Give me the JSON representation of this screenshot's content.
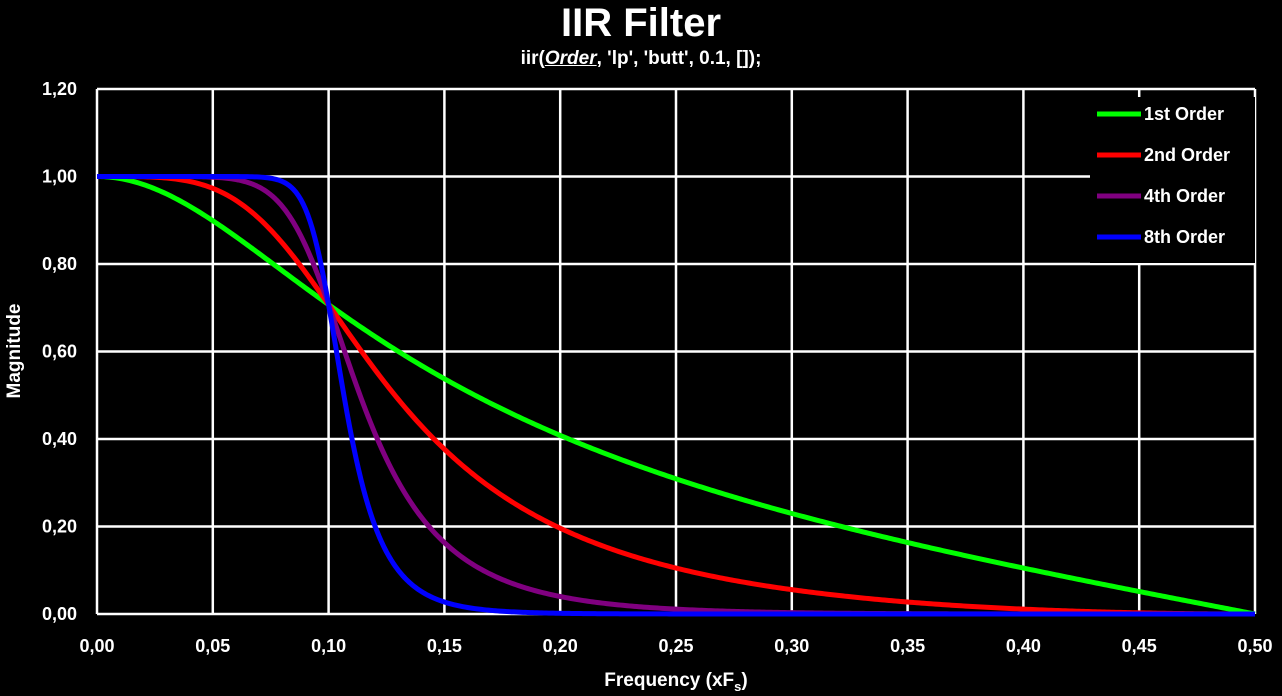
{
  "chart_data": {
    "type": "line",
    "title": "IIR Filter",
    "subtitle": {
      "prefix": "iir(",
      "emphasis": "Order",
      "suffix": ", 'lp', 'butt', 0.1, []);"
    },
    "xlabel": {
      "main": "Frequency (xF",
      "sub": "s",
      "end": ")"
    },
    "ylabel": "Magnitude",
    "xlim": [
      0,
      0.5
    ],
    "ylim": [
      0,
      1.2
    ],
    "grid": true,
    "legend_position": "top-right",
    "x_ticks": [
      "0,00",
      "0,05",
      "0,10",
      "0,15",
      "0,20",
      "0,25",
      "0,30",
      "0,35",
      "0,40",
      "0,45",
      "0,50"
    ],
    "y_ticks": [
      "0,00",
      "0,20",
      "0,40",
      "0,60",
      "0,80",
      "1,00",
      "1,20"
    ],
    "cutoff": 0.1,
    "series": [
      {
        "name": "1st Order",
        "order": 1,
        "color": "#00ff00"
      },
      {
        "name": "2nd Order",
        "order": 2,
        "color": "#ff0000"
      },
      {
        "name": "4th Order",
        "order": 4,
        "color": "#800080"
      },
      {
        "name": "8th Order",
        "order": 8,
        "color": "#0000ff"
      }
    ]
  }
}
